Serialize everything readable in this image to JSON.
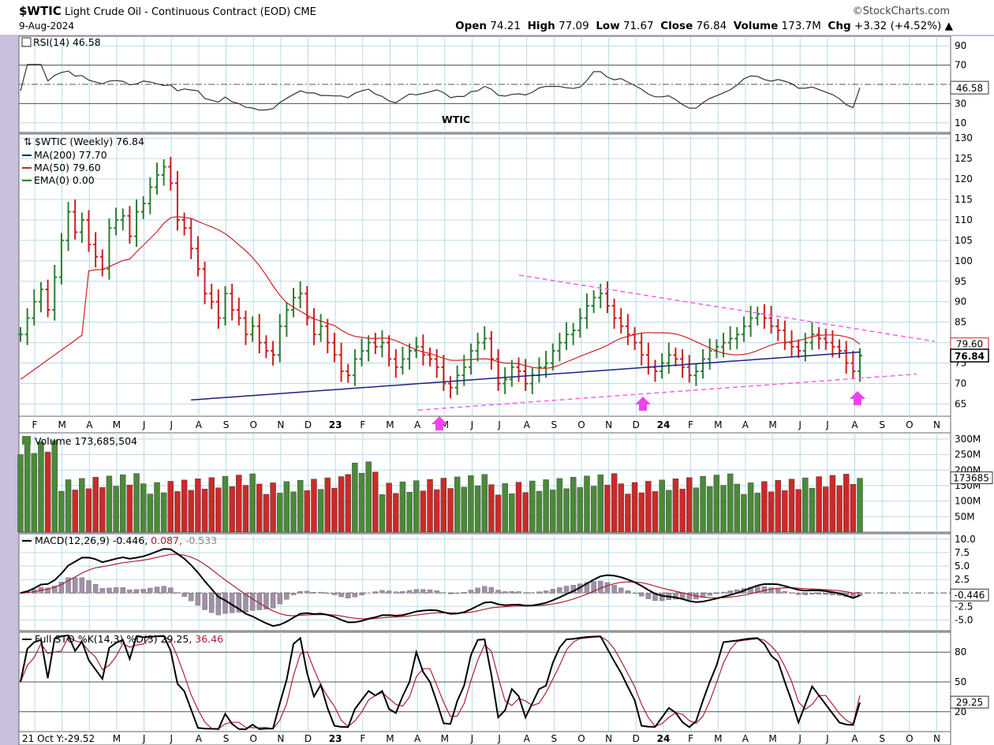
{
  "header": {
    "symbol": "$WTIC",
    "title": "Light Crude Oil - Continuous Contract (EOD)",
    "exchange": "CME",
    "date": "9-Aug-2024",
    "source": "©StockCharts.com",
    "open_label": "Open",
    "open": "74.21",
    "high_label": "High",
    "high": "77.09",
    "low_label": "Low",
    "low": "71.67",
    "close_label": "Close",
    "close": "76.84",
    "volume_label": "Volume",
    "volume": "173.7M",
    "chg_label": "Chg",
    "chg": "+3.32 (+4.52%)"
  },
  "annotation": "WTIC",
  "rsi_panel": {
    "label": "RSI(14) 46.58",
    "ticks": [
      "90",
      "70",
      "30",
      "10"
    ],
    "tick_values": [
      90,
      70,
      30,
      10
    ],
    "current": "46.58",
    "current_value": 46.58
  },
  "price_panel": {
    "label": "$WTIC (Weekly) 76.84",
    "ma200": "MA(200) 77.70",
    "ma50": "MA(50) 79.60",
    "ema": "EMA(0) 0.00",
    "ticks": [
      "130",
      "125",
      "120",
      "115",
      "110",
      "105",
      "100",
      "95",
      "90",
      "85",
      "80",
      "75",
      "70",
      "65"
    ],
    "tick_values": [
      130,
      125,
      120,
      115,
      110,
      105,
      100,
      95,
      90,
      85,
      80,
      75,
      70,
      65
    ],
    "ma50_badge": "79.60",
    "close_badge": "76.84"
  },
  "volume_panel": {
    "label": "Volume 173,685,504",
    "ticks": [
      "300M",
      "250M",
      "200M",
      "150M",
      "100M",
      "50M"
    ],
    "tick_values": [
      300,
      250,
      200,
      150,
      100,
      50
    ],
    "badge": "173685"
  },
  "macd_panel": {
    "label": "MACD(12,26,9)",
    "macd": "-0.446",
    "signal": "0.087",
    "hist": "-0.533",
    "ticks": [
      "10.0",
      "7.5",
      "5.0",
      "2.5",
      "-2.5",
      "-5.0"
    ],
    "tick_values": [
      10,
      7.5,
      5,
      2.5,
      -2.5,
      -5
    ],
    "badge": "-0.446"
  },
  "sto_panel": {
    "label": "Full STO %K(14,3) %D(3)",
    "k": "29.25",
    "d": "36.46",
    "ticks": [
      "80",
      "50",
      "20"
    ],
    "tick_values": [
      80,
      50,
      20
    ],
    "badge": "29.25"
  },
  "x_axis": {
    "months_top": [
      "F",
      "M",
      "A",
      "M",
      "J",
      "J",
      "A",
      "S",
      "O",
      "N",
      "D",
      "23",
      "F",
      "M",
      "A",
      "M",
      "J",
      "J",
      "A",
      "S",
      "O",
      "N",
      "D",
      "24",
      "F",
      "M",
      "A",
      "M",
      "J",
      "J",
      "A",
      "S",
      "O",
      "N"
    ],
    "months_bottom": [
      "M",
      "J",
      "J",
      "A",
      "S",
      "O",
      "N",
      "D",
      "23",
      "F",
      "M",
      "A",
      "M",
      "J",
      "J",
      "A",
      "S",
      "O",
      "N",
      "D",
      "24",
      "F",
      "M",
      "A",
      "M",
      "J",
      "J",
      "A",
      "S",
      "O",
      "N"
    ],
    "cursor_readout": "21 Oct Y:-29.52"
  },
  "colors": {
    "up_bar": "#2e7d32",
    "down_bar": "#cc1f1f",
    "ma200": "#1a237e",
    "ma50": "#cc2222",
    "trendline": "#ee66ee",
    "arrow": "#ee44ee",
    "annotation": "#9b4ddb",
    "panel_bg": "#ffffff",
    "vol_up": "#4a8a3a",
    "vol_down": "#cc2a2a",
    "hist": "#a090a8"
  },
  "chart_data": {
    "type": "line",
    "title": "$WTIC Light Crude Oil - Continuous Contract (EOD) Weekly",
    "date_range": [
      "2022-02",
      "2024-08"
    ],
    "price_ylim": [
      62,
      131
    ],
    "last_close": 76.84,
    "ma200_last": 77.7,
    "ma50_last": 79.6,
    "weekly_close": [
      82,
      86,
      90,
      93,
      88,
      96,
      105,
      112,
      107,
      110,
      104,
      101,
      98,
      108,
      110,
      111,
      106,
      112,
      114,
      118,
      121,
      123,
      119,
      110,
      108,
      103,
      98,
      92,
      90,
      86,
      92,
      88,
      86,
      82,
      84,
      80,
      78,
      77,
      84,
      88,
      91,
      92,
      86,
      82,
      84,
      80,
      77,
      73,
      72,
      76,
      78,
      80,
      79,
      80,
      76,
      74,
      76,
      78,
      79,
      77,
      76,
      74,
      70,
      69,
      72,
      74,
      78,
      80,
      81,
      76,
      70,
      71,
      74,
      73,
      70,
      72,
      74,
      75,
      78,
      80,
      82,
      83,
      86,
      89,
      91,
      92,
      89,
      86,
      84,
      82,
      80,
      77,
      74,
      73,
      75,
      77,
      76,
      74,
      72,
      73,
      76,
      78,
      79,
      80,
      81,
      82,
      84,
      86,
      87,
      86,
      84,
      83,
      80,
      79,
      78,
      80,
      82,
      81,
      80,
      79,
      78,
      75,
      73,
      76.84
    ]
  }
}
